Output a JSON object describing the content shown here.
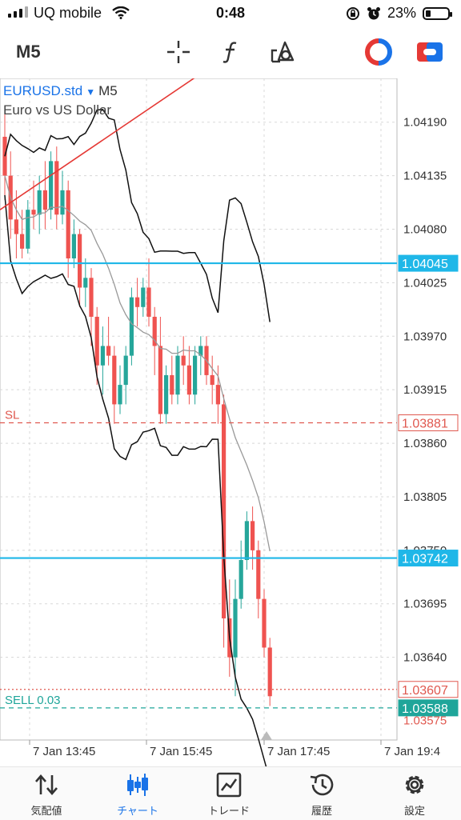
{
  "status_bar": {
    "carrier": "UQ mobile",
    "time": "0:48",
    "battery_percent": "23%",
    "battery_level": 0.23
  },
  "toolbar": {
    "timeframe": "M5",
    "crosshair_icon": "crosshair-icon",
    "indicators_icon": "function-icon",
    "objects_icon": "objects-icon"
  },
  "chart": {
    "symbol": "EURUSD.std",
    "timeframe": "M5",
    "description": "Euro vs US Dollar",
    "price_labels": [
      "1.04190",
      "1.04135",
      "1.04080",
      "1.04025",
      "1.03970",
      "1.03915",
      "1.03860",
      "1.03805",
      "1.03750",
      "1.03695",
      "1.03640",
      "1.03575"
    ],
    "time_labels": [
      "7 Jan 13:45",
      "7 Jan 15:45",
      "7 Jan 17:45",
      "7 Jan 19:4"
    ],
    "hlines": [
      {
        "price": 1.04045,
        "label": "1.04045",
        "color": "#1fb7e8",
        "style": "solid",
        "text": ""
      },
      {
        "price": 1.03881,
        "label": "1.03881",
        "color": "#e0584f",
        "style": "dashed",
        "text": "SL"
      },
      {
        "price": 1.03742,
        "label": "1.03742",
        "color": "#1fb7e8",
        "style": "solid",
        "text": ""
      },
      {
        "price": 1.03607,
        "label": "1.03607",
        "color": "#e0584f",
        "style": "dotted",
        "text": ""
      },
      {
        "price": 1.03588,
        "label": "1.03588",
        "color": "#1fa59a",
        "style": "dashed",
        "text": "SELL 0.03"
      }
    ],
    "colors": {
      "bull": "#26a69a",
      "bear": "#ef5350",
      "grid": "#d8d8d8",
      "trendline": "#e53935"
    }
  },
  "chart_data": {
    "type": "candlestick",
    "candles": [
      [
        1.04175,
        1.042,
        1.0411,
        1.04135
      ],
      [
        1.04135,
        1.0416,
        1.0407,
        1.0409
      ],
      [
        1.0409,
        1.0412,
        1.0405,
        1.04075
      ],
      [
        1.04075,
        1.041,
        1.0405,
        1.0406
      ],
      [
        1.0406,
        1.0411,
        1.04055,
        1.041
      ],
      [
        1.041,
        1.0413,
        1.0408,
        1.04095
      ],
      [
        1.04095,
        1.04135,
        1.04075,
        1.0412
      ],
      [
        1.0412,
        1.0415,
        1.0408,
        1.041
      ],
      [
        1.041,
        1.0416,
        1.0409,
        1.0415
      ],
      [
        1.0415,
        1.04165,
        1.0408,
        1.04095
      ],
      [
        1.04095,
        1.0414,
        1.04085,
        1.0412
      ],
      [
        1.0412,
        1.0413,
        1.0403,
        1.0405
      ],
      [
        1.0405,
        1.0409,
        1.0404,
        1.04075
      ],
      [
        1.04075,
        1.0408,
        1.04,
        1.0402
      ],
      [
        1.0402,
        1.0405,
        1.04,
        1.0403
      ],
      [
        1.0403,
        1.0404,
        1.0396,
        1.0399
      ],
      [
        1.0399,
        1.04,
        1.0392,
        1.0394
      ],
      [
        1.0394,
        1.0398,
        1.0391,
        1.0396
      ],
      [
        1.0396,
        1.0399,
        1.0394,
        1.0395
      ],
      [
        1.0395,
        1.0396,
        1.0388,
        1.039
      ],
      [
        1.039,
        1.0394,
        1.0389,
        1.0392
      ],
      [
        1.0392,
        1.0396,
        1.039,
        1.0395
      ],
      [
        1.0395,
        1.0402,
        1.0394,
        1.0401
      ],
      [
        1.0401,
        1.0403,
        1.0398,
        1.04
      ],
      [
        1.04,
        1.0403,
        1.0399,
        1.0402
      ],
      [
        1.0402,
        1.0405,
        1.0398,
        1.0399
      ],
      [
        1.0399,
        1.04,
        1.0393,
        1.0396
      ],
      [
        1.0396,
        1.0399,
        1.0388,
        1.0389
      ],
      [
        1.0389,
        1.0394,
        1.0388,
        1.0393
      ],
      [
        1.0393,
        1.0395,
        1.039,
        1.0391
      ],
      [
        1.0391,
        1.0396,
        1.039,
        1.0395
      ],
      [
        1.0395,
        1.0397,
        1.0392,
        1.0394
      ],
      [
        1.0394,
        1.0396,
        1.039,
        1.0391
      ],
      [
        1.0391,
        1.0396,
        1.039,
        1.0395
      ],
      [
        1.0395,
        1.0397,
        1.0393,
        1.0396
      ],
      [
        1.0396,
        1.0397,
        1.0392,
        1.0393
      ],
      [
        1.0393,
        1.0395,
        1.039,
        1.0392
      ],
      [
        1.0392,
        1.0394,
        1.0388,
        1.039
      ],
      [
        1.039,
        1.0391,
        1.0365,
        1.0368
      ],
      [
        1.0368,
        1.0372,
        1.0362,
        1.0364
      ],
      [
        1.0364,
        1.0372,
        1.036,
        1.037
      ],
      [
        1.037,
        1.0376,
        1.0369,
        1.0374
      ],
      [
        1.0374,
        1.0379,
        1.0373,
        1.0378
      ],
      [
        1.0378,
        1.03795,
        1.0373,
        1.0375
      ],
      [
        1.0375,
        1.0376,
        1.0368,
        1.037
      ],
      [
        1.037,
        1.0371,
        1.0364,
        1.0365
      ],
      [
        1.0365,
        1.0366,
        1.0359,
        1.036
      ]
    ],
    "x_labels": [
      "7 Jan 13:45",
      "7 Jan 15:45",
      "7 Jan 17:45",
      "7 Jan 19:4"
    ],
    "y_ticks": [
      1.0419,
      1.04135,
      1.0408,
      1.04025,
      1.0397,
      1.03915,
      1.0386,
      1.03805,
      1.0375,
      1.03695,
      1.0364
    ],
    "ylim": [
      1.03555,
      1.04235
    ],
    "grid": true
  },
  "nav": {
    "items": [
      {
        "label": "気配値",
        "icon": "quotes-arrows-icon",
        "active": false
      },
      {
        "label": "チャート",
        "icon": "chart-candles-icon",
        "active": true
      },
      {
        "label": "トレード",
        "icon": "trade-graph-icon",
        "active": false
      },
      {
        "label": "履歴",
        "icon": "history-icon",
        "active": false
      },
      {
        "label": "設定",
        "icon": "gear-icon",
        "active": false
      }
    ]
  }
}
